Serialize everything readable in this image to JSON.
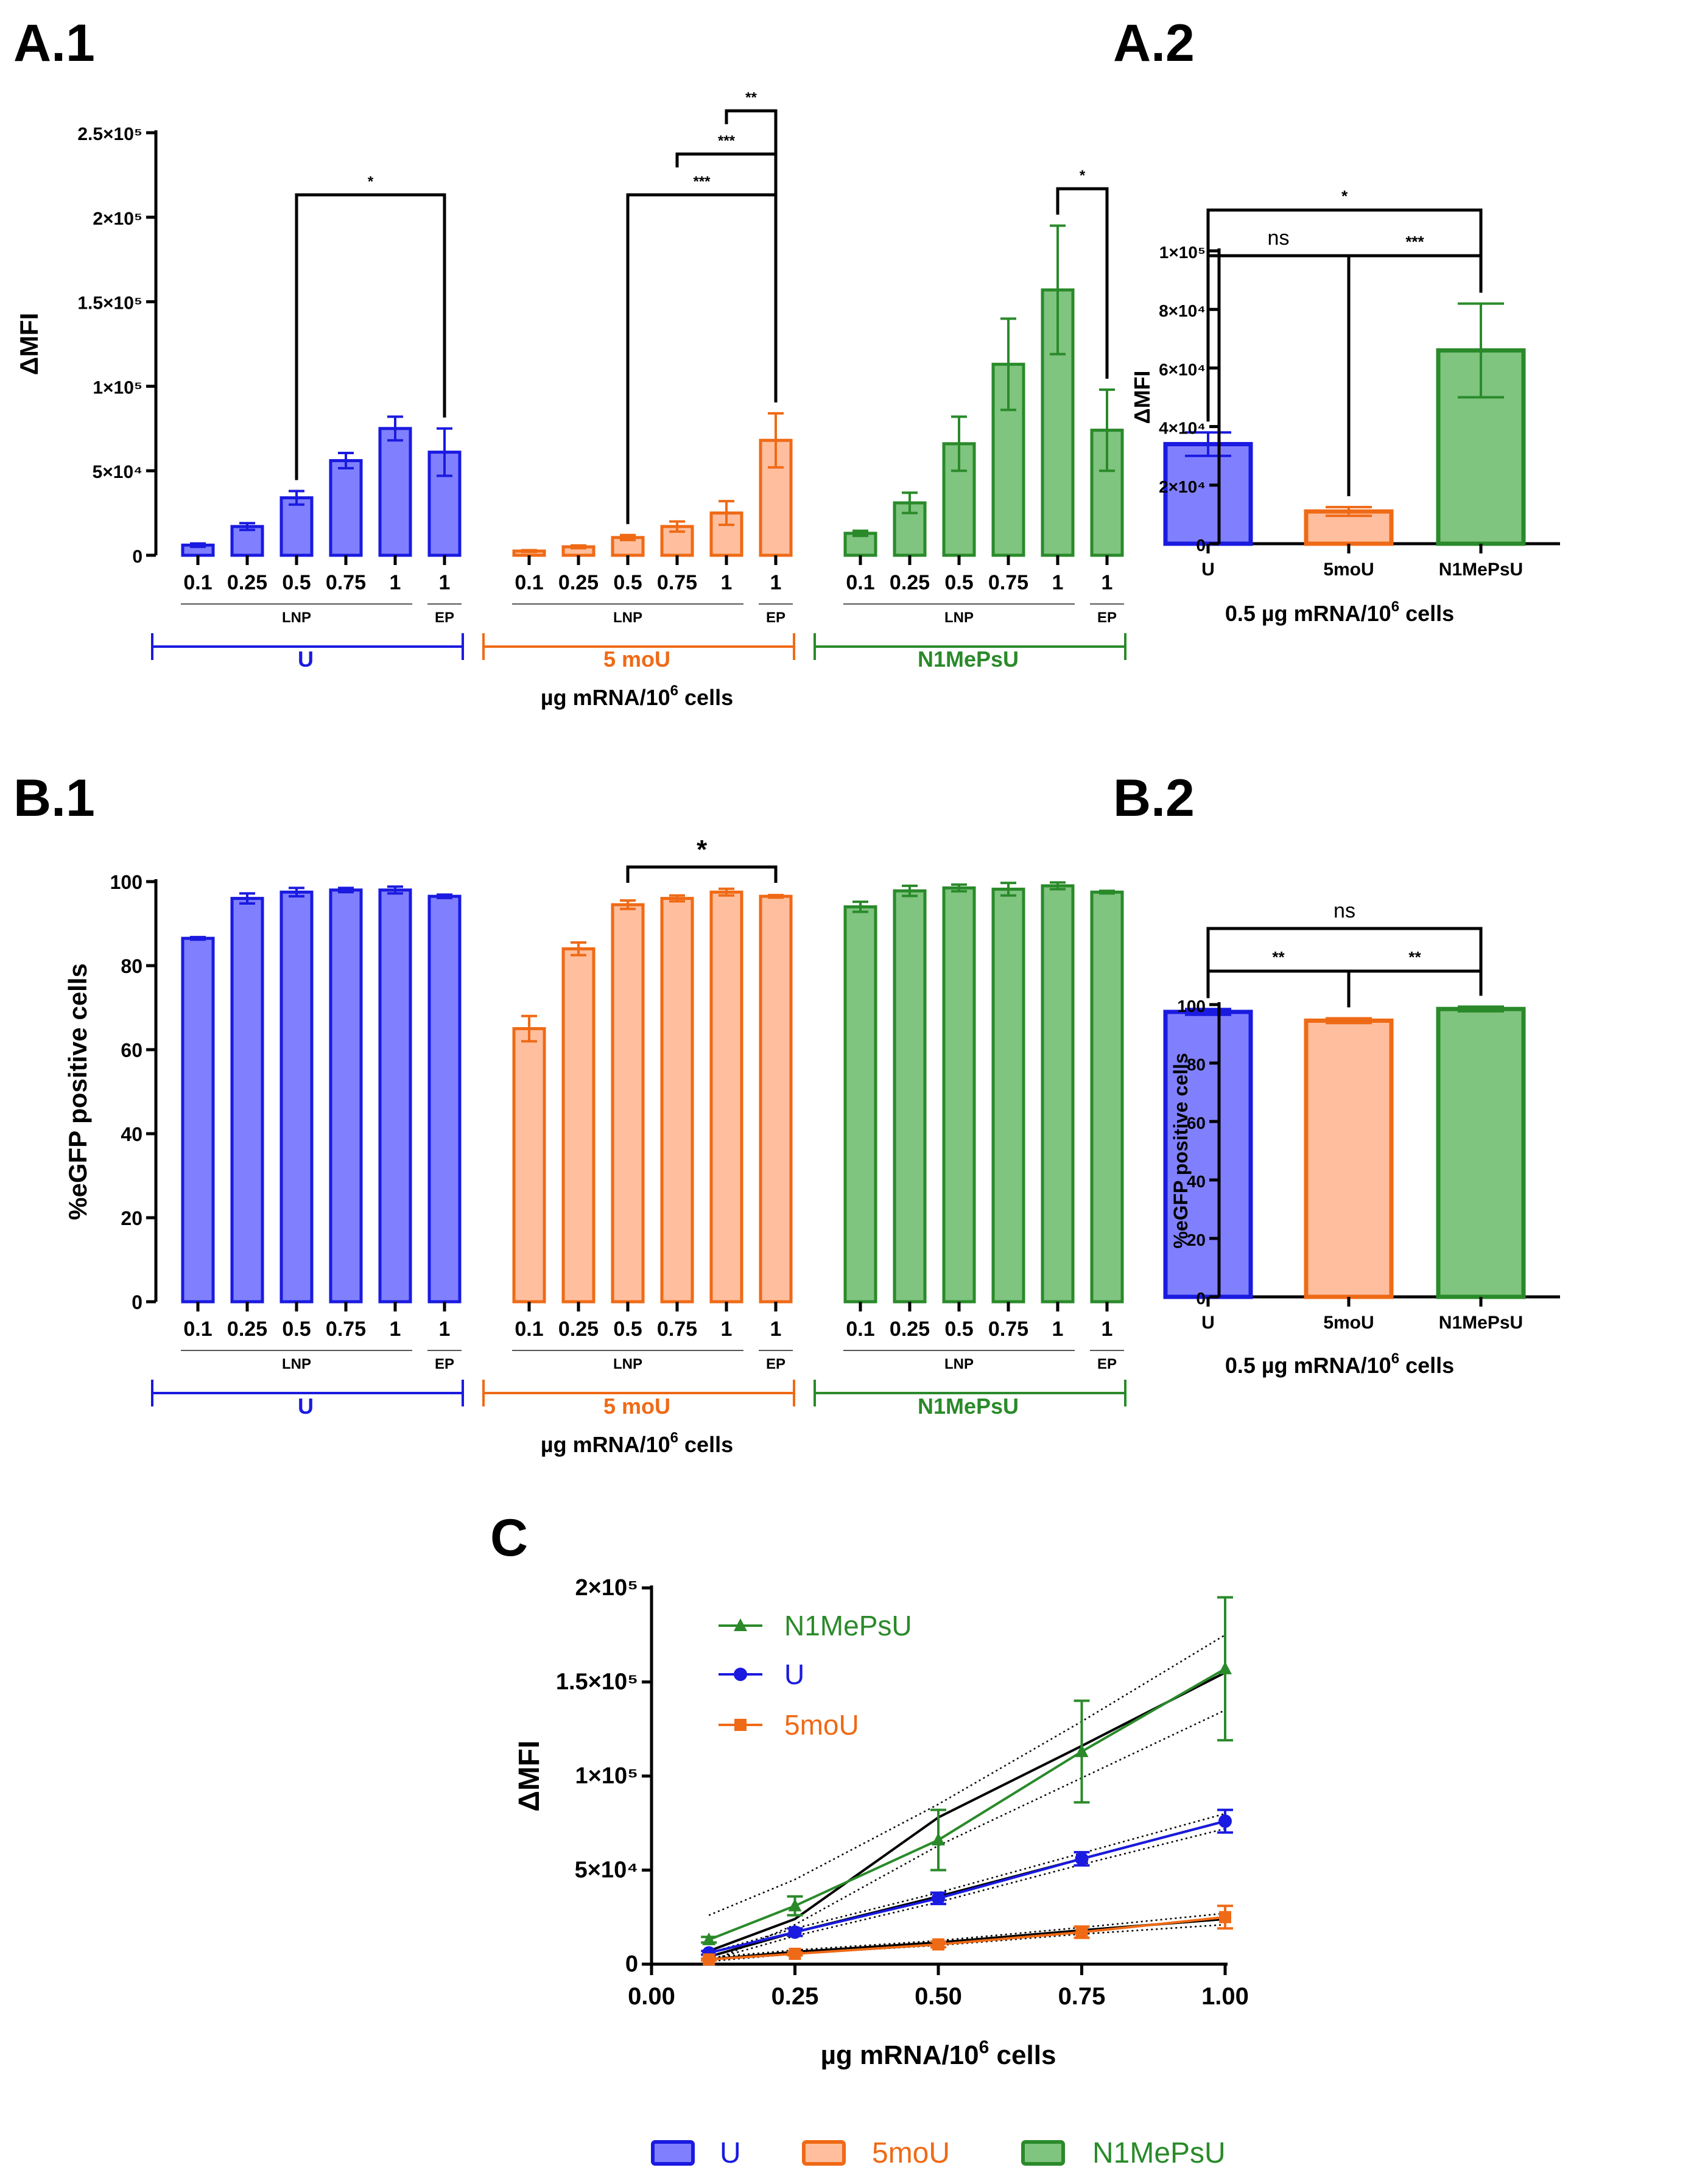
{
  "colors": {
    "U_fill": "#8080ff",
    "U_stroke": "#1a1ae0",
    "moU_fill": "#ffbf9e",
    "moU_stroke": "#ef6a16",
    "N1_fill": "#7fc47f",
    "N1_stroke": "#2a8a2a",
    "axis": "#000000"
  },
  "panels": {
    "a1": {
      "label": "A.1"
    },
    "a2": {
      "label": "A.2"
    },
    "b1": {
      "label": "B.1"
    },
    "b2": {
      "label": "B.2"
    },
    "c": {
      "label": "C"
    }
  },
  "groups": {
    "U": {
      "label": "U"
    },
    "moU": {
      "label": "5 moU"
    },
    "N1": {
      "label": "N1MePsU"
    }
  },
  "common": {
    "lnp": "LNP",
    "ep": "EP",
    "xlabel_main": "µg mRNA/10",
    "xlabel_sup": "6",
    "xlabel_tail": " cells",
    "x2label_main": "0.5 µg mRNA/10",
    "x2label_sup": "6",
    "x2label_tail": " cells"
  },
  "legend": {
    "U": "U",
    "moU": "5moU",
    "N1": "N1MePsU"
  },
  "chart_data": [
    {
      "id": "A1",
      "type": "bar",
      "title": "",
      "ylabel": "ΔMFI",
      "ylim": [
        0,
        250000
      ],
      "yticks": [
        "0",
        "5×10⁴",
        "1×10⁵",
        "1.5×10⁵",
        "2×10⁵",
        "2.5×10⁵"
      ],
      "categories": [
        "0.1",
        "0.25",
        "0.5",
        "0.75",
        "1",
        "1"
      ],
      "category_type": [
        "LNP",
        "LNP",
        "LNP",
        "LNP",
        "LNP",
        "EP"
      ],
      "series": [
        {
          "name": "U",
          "values": [
            6000,
            17000,
            34000,
            56000,
            75000,
            61000
          ],
          "errors": [
            1000,
            2000,
            4000,
            4500,
            7000,
            14000
          ]
        },
        {
          "name": "5moU",
          "values": [
            2500,
            5000,
            10500,
            17000,
            25000,
            68000
          ],
          "errors": [
            500,
            800,
            1500,
            3000,
            7000,
            16000
          ]
        },
        {
          "name": "N1MePsU",
          "values": [
            13000,
            31000,
            66000,
            113000,
            157000,
            74000
          ],
          "errors": [
            1500,
            6000,
            16000,
            27000,
            38000,
            24000
          ]
        }
      ],
      "significance": [
        {
          "group": "U",
          "from": 2,
          "to": 5,
          "label": "*"
        },
        {
          "group": "5moU",
          "from": 2,
          "to": 5,
          "label": "***"
        },
        {
          "group": "5moU",
          "from": 3,
          "to": 5,
          "label": "***"
        },
        {
          "group": "5moU",
          "from": 4,
          "to": 5,
          "label": "**"
        },
        {
          "group": "N1MePsU",
          "from": 4,
          "to": 5,
          "label": "*"
        }
      ]
    },
    {
      "id": "A2",
      "type": "bar",
      "ylabel": "ΔMFI",
      "ylim": [
        0,
        100000
      ],
      "yticks": [
        "0",
        "2×10⁴",
        "4×10⁴",
        "6×10⁴",
        "8×10⁴",
        "1×10⁵"
      ],
      "categories": [
        "U",
        "5moU",
        "N1MePsU"
      ],
      "values": [
        34000,
        11000,
        66000
      ],
      "errors": [
        4000,
        1500,
        16000
      ],
      "significance": [
        {
          "from": 0,
          "to": 1,
          "label": "ns"
        },
        {
          "from": 1,
          "to": 2,
          "label": "***"
        },
        {
          "from": 0,
          "to": 2,
          "label": "*"
        }
      ]
    },
    {
      "id": "B1",
      "type": "bar",
      "ylabel": "%eGFP positive cells",
      "ylim": [
        0,
        100
      ],
      "yticks": [
        "0",
        "20",
        "40",
        "60",
        "80",
        "100"
      ],
      "categories": [
        "0.1",
        "0.25",
        "0.5",
        "0.75",
        "1",
        "1"
      ],
      "category_type": [
        "LNP",
        "LNP",
        "LNP",
        "LNP",
        "LNP",
        "EP"
      ],
      "series": [
        {
          "name": "U",
          "values": [
            86.5,
            96,
            97.5,
            98,
            98,
            96.5
          ],
          "errors": [
            0.3,
            1.2,
            1,
            0.5,
            0.8,
            0.4
          ]
        },
        {
          "name": "5moU",
          "values": [
            65,
            84,
            94.5,
            96,
            97.5,
            96.5
          ],
          "errors": [
            3,
            1.5,
            1,
            0.7,
            0.8,
            0.3
          ]
        },
        {
          "name": "N1MePsU",
          "values": [
            94,
            97.8,
            98.5,
            98.2,
            99,
            97.5
          ],
          "errors": [
            1.2,
            1.2,
            0.8,
            1.5,
            0.8,
            0.3
          ]
        }
      ],
      "significance": [
        {
          "group": "5moU",
          "from": 2,
          "to": 5,
          "label": "*"
        }
      ]
    },
    {
      "id": "B2",
      "type": "bar",
      "ylabel": "%eGFP positive cells",
      "ylim": [
        0,
        100
      ],
      "yticks": [
        "0",
        "20",
        "40",
        "60",
        "80",
        "100"
      ],
      "categories": [
        "U",
        "5moU",
        "N1MePsU"
      ],
      "values": [
        97.5,
        94.5,
        98.5
      ],
      "errors": [
        1,
        0.8,
        0.8
      ],
      "significance": [
        {
          "from": 0,
          "to": 1,
          "label": "**"
        },
        {
          "from": 1,
          "to": 2,
          "label": "**"
        },
        {
          "from": 0,
          "to": 2,
          "label": "ns"
        }
      ]
    },
    {
      "id": "C",
      "type": "line",
      "xlabel": "µg mRNA/10⁶ cells",
      "ylabel": "ΔMFI",
      "xlim": [
        0,
        1
      ],
      "ylim": [
        0,
        200000
      ],
      "xticks": [
        "0.00",
        "0.25",
        "0.50",
        "0.75",
        "1.00"
      ],
      "yticks": [
        "0",
        "5×10⁴",
        "1×10⁵",
        "1.5×10⁵",
        "2×10⁵"
      ],
      "x": [
        0.1,
        0.25,
        0.5,
        0.75,
        1.0
      ],
      "series": [
        {
          "name": "N1MePsU",
          "values": [
            13000,
            31000,
            66000,
            113000,
            157000
          ],
          "errors": [
            1500,
            5000,
            16000,
            27000,
            38000
          ],
          "fit": [
            7000,
            24000,
            78000,
            116000,
            155000
          ],
          "ci_low": [
            1000,
            21000,
            63000,
            99000,
            135000
          ],
          "ci_high": [
            26000,
            45000,
            85000,
            129000,
            175000
          ]
        },
        {
          "name": "U",
          "values": [
            6000,
            17000,
            35000,
            56000,
            76000
          ],
          "errors": [
            1000,
            2000,
            3000,
            3500,
            6000
          ],
          "fit": [
            4000,
            17000,
            36000,
            56000,
            76000
          ],
          "ci_low": [
            2000,
            15000,
            33000,
            53000,
            72000
          ],
          "ci_high": [
            6000,
            19000,
            38000,
            59000,
            80000
          ]
        },
        {
          "name": "5moU",
          "values": [
            2500,
            5500,
            10500,
            17000,
            25000
          ],
          "errors": [
            500,
            800,
            1500,
            3000,
            6000
          ],
          "fit": [
            2500,
            6500,
            11500,
            18000,
            24000
          ],
          "ci_low": [
            1500,
            5500,
            10000,
            16000,
            21000
          ],
          "ci_high": [
            3500,
            7500,
            12500,
            19500,
            27000
          ]
        }
      ]
    }
  ]
}
